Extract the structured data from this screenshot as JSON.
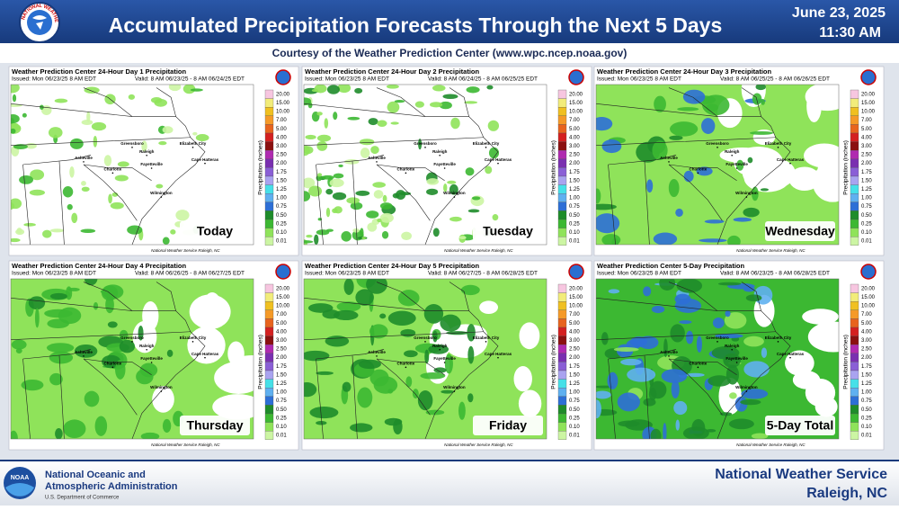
{
  "header": {
    "logo_text": "NATIONAL WEATHER SERVICE",
    "title": "Accumulated Precipitation Forecasts Through the Next 5 Days",
    "date": "June 23, 2025",
    "time": "11:30 AM",
    "subtitle": "Courtesy of the Weather Prediction Center (www.wpc.ncep.noaa.gov)"
  },
  "panels": [
    {
      "title": "Weather Prediction Center 24-Hour Day 1 Precipitation",
      "issued": "Issued: Mon 06/23/25 8 AM EDT",
      "valid": "Valid: 8 AM 06/23/25 - 8 AM 06/24/25 EDT",
      "day_label": "Today"
    },
    {
      "title": "Weather Prediction Center 24-Hour Day 2 Precipitation",
      "issued": "Issued: Mon 06/23/25 8 AM EDT",
      "valid": "Valid: 8 AM 06/24/25 - 8 AM 06/25/25 EDT",
      "day_label": "Tuesday"
    },
    {
      "title": "Weather Prediction Center 24-Hour Day 3 Precipitation",
      "issued": "Issued: Mon 06/23/25 8 AM EDT",
      "valid": "Valid: 8 AM 06/25/25 - 8 AM 06/26/25 EDT",
      "day_label": "Wednesday"
    },
    {
      "title": "Weather Prediction Center 24-Hour Day 4 Precipitation",
      "issued": "Issued: Mon 06/23/25 8 AM EDT",
      "valid": "Valid: 8 AM 06/26/25 - 8 AM 06/27/25 EDT",
      "day_label": "Thursday"
    },
    {
      "title": "Weather Prediction Center 24-Hour Day 5 Precipitation",
      "issued": "Issued: Mon 06/23/25 8 AM EDT",
      "valid": "Valid: 8 AM 06/27/25 - 8 AM 06/28/25 EDT",
      "day_label": "Friday"
    },
    {
      "title": "Weather Prediction Center 5-Day Precipitation",
      "issued": "Issued: Mon 06/23/25 8 AM EDT",
      "valid": "Valid: 8 AM 06/23/25 - 8 AM 06/28/25 EDT",
      "day_label": "5-Day Total"
    }
  ],
  "map_credit": "National Weather Service Raleigh, NC",
  "cities": [
    "Greensboro",
    "Raleigh",
    "Asheville",
    "Charlotte",
    "Fayetteville",
    "Wilmington",
    "Elizabeth City",
    "Cape Hatteras"
  ],
  "legend": {
    "axis_label": "Precipitation (inches)",
    "levels": [
      {
        "label": "20.00",
        "color": "#f7c6e0"
      },
      {
        "label": "15.00",
        "color": "#f2ec7a"
      },
      {
        "label": "10.00",
        "color": "#f0c020"
      },
      {
        "label": "7.00",
        "color": "#f59a28"
      },
      {
        "label": "5.00",
        "color": "#e8641e"
      },
      {
        "label": "4.00",
        "color": "#d42020"
      },
      {
        "label": "3.00",
        "color": "#8b1010"
      },
      {
        "label": "2.50",
        "color": "#b02ab0"
      },
      {
        "label": "2.00",
        "color": "#7a2fb0"
      },
      {
        "label": "1.75",
        "color": "#8a5fd6"
      },
      {
        "label": "1.50",
        "color": "#a9a3f0"
      },
      {
        "label": "1.25",
        "color": "#46e0e8"
      },
      {
        "label": "1.00",
        "color": "#5fb0f0"
      },
      {
        "label": "0.75",
        "color": "#2d6fd6"
      },
      {
        "label": "0.50",
        "color": "#1e8c2a"
      },
      {
        "label": "0.25",
        "color": "#3cb832"
      },
      {
        "label": "0.10",
        "color": "#8fe35a"
      },
      {
        "label": "0.01",
        "color": "#ccf5a3"
      }
    ]
  },
  "footer": {
    "noaa_logo": "NOAA",
    "noaa_line1": "National Oceanic and",
    "noaa_line2": "Atmospheric Administration",
    "noaa_sub": "U.S. Department of Commerce",
    "nws": "National Weather Service",
    "office": "Raleigh, NC"
  }
}
